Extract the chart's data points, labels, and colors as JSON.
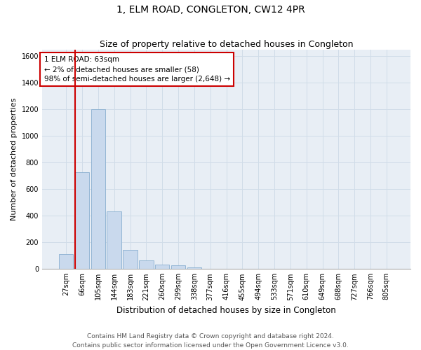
{
  "title": "1, ELM ROAD, CONGLETON, CW12 4PR",
  "subtitle": "Size of property relative to detached houses in Congleton",
  "xlabel": "Distribution of detached houses by size in Congleton",
  "ylabel": "Number of detached properties",
  "bar_labels": [
    "27sqm",
    "66sqm",
    "105sqm",
    "144sqm",
    "183sqm",
    "221sqm",
    "260sqm",
    "299sqm",
    "338sqm",
    "377sqm",
    "416sqm",
    "455sqm",
    "494sqm",
    "533sqm",
    "571sqm",
    "610sqm",
    "649sqm",
    "688sqm",
    "727sqm",
    "766sqm",
    "805sqm"
  ],
  "bar_values": [
    110,
    730,
    1200,
    435,
    145,
    65,
    35,
    30,
    10,
    0,
    0,
    0,
    0,
    0,
    0,
    0,
    0,
    0,
    0,
    0,
    0
  ],
  "bar_color": "#c9d9ed",
  "bar_edge_color": "#8aafd0",
  "ylim": [
    0,
    1650
  ],
  "yticks": [
    0,
    200,
    400,
    600,
    800,
    1000,
    1200,
    1400,
    1600
  ],
  "annotation_line1": "1 ELM ROAD: 63sqm",
  "annotation_line2": "← 2% of detached houses are smaller (58)",
  "annotation_line3": "98% of semi-detached houses are larger (2,648) →",
  "annotation_box_color": "#ffffff",
  "annotation_box_edge_color": "#cc0000",
  "red_line_color": "#cc0000",
  "grid_color": "#d0dce8",
  "background_color": "#e8eef5",
  "footer_line1": "Contains HM Land Registry data © Crown copyright and database right 2024.",
  "footer_line2": "Contains public sector information licensed under the Open Government Licence v3.0.",
  "title_fontsize": 10,
  "subtitle_fontsize": 9,
  "xlabel_fontsize": 8.5,
  "ylabel_fontsize": 8,
  "tick_fontsize": 7,
  "annotation_fontsize": 7.5,
  "footer_fontsize": 6.5
}
